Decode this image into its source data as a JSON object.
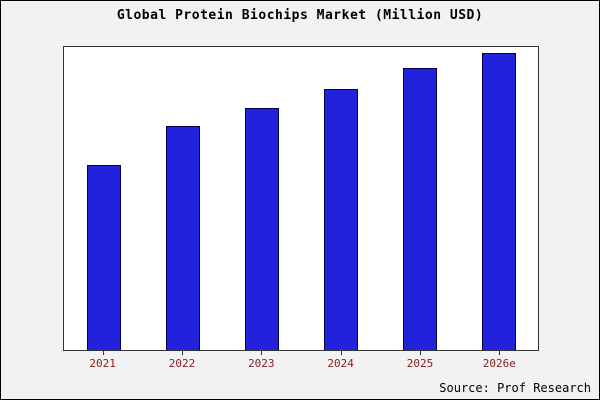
{
  "title": "Global Protein Biochips Market (Million USD)",
  "source": "Source: Prof Research",
  "colors": {
    "bar_fill": "#2222dd",
    "bar_border": "#00004d",
    "label_color": "#8b1a1a",
    "frame_bg": "#f2f2f2",
    "plot_bg": "#ffffff"
  },
  "chart_data": {
    "type": "bar",
    "title": "Global Protein Biochips Market (Million USD)",
    "categories": [
      "2021",
      "2022",
      "2023",
      "2024",
      "2025",
      "2026e"
    ],
    "values": [
      61,
      74,
      80,
      86,
      93,
      98
    ],
    "xlabel": "",
    "ylabel": "",
    "ylim": [
      0,
      100
    ],
    "grid": false,
    "legend": "none",
    "note": "No y-axis tick labels visible; values are relative estimates scaled to plot height"
  }
}
